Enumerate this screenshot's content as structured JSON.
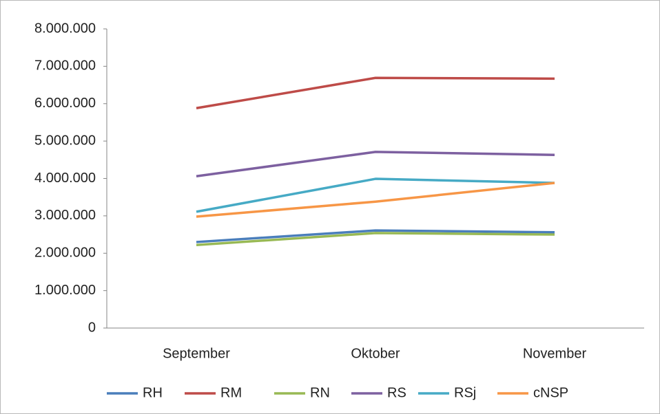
{
  "chart_data": {
    "type": "line",
    "categories": [
      "September",
      "Oktober",
      "November"
    ],
    "series": [
      {
        "name": "RH",
        "color": "#4a7ebb",
        "values": [
          2300000,
          2610000,
          2560000
        ]
      },
      {
        "name": "RM",
        "color": "#be4b48",
        "values": [
          5880000,
          6690000,
          6670000
        ]
      },
      {
        "name": "RN",
        "color": "#98b954",
        "values": [
          2220000,
          2540000,
          2500000
        ]
      },
      {
        "name": "RS",
        "color": "#7d60a0",
        "values": [
          4060000,
          4710000,
          4630000
        ]
      },
      {
        "name": "RSj",
        "color": "#46aac5",
        "values": [
          3110000,
          3990000,
          3880000
        ]
      },
      {
        "name": "cNSP",
        "color": "#f79646",
        "values": [
          2980000,
          3380000,
          3880000
        ]
      }
    ],
    "ylim": [
      0,
      8000000
    ],
    "yticks": [
      0,
      {
        "value": 1000000,
        "label": "1.000.000"
      },
      {
        "value": 2000000,
        "label": "2.000.000"
      },
      {
        "value": 3000000,
        "label": "3.000.000"
      },
      {
        "value": 4000000,
        "label": "4.000.000"
      },
      {
        "value": 5000000,
        "label": "5.000.000"
      },
      {
        "value": 6000000,
        "label": "6.000.000"
      },
      {
        "value": 7000000,
        "label": "7.000.000"
      },
      {
        "value": 8000000,
        "label": "8.000.000"
      }
    ],
    "legend": "bottom"
  }
}
